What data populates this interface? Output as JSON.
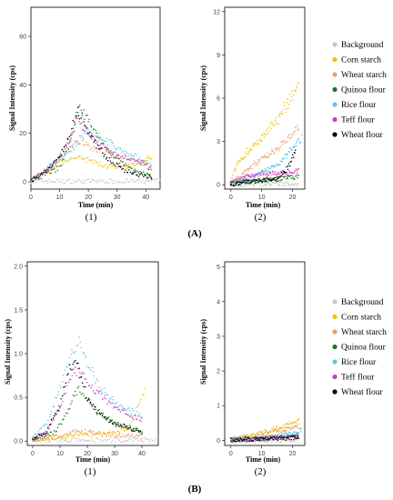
{
  "colors": {
    "Background": "#c8c8c8",
    "Corn starch": "#f2c200",
    "Wheat starch": "#e8a070",
    "Quinoa flour": "#1e7a1e",
    "Rice flour": "#5cc8e8",
    "Teff flour": "#d040c0",
    "Wheat flour": "#000000"
  },
  "legend": [
    "Background",
    "Corn starch",
    "Wheat starch",
    "Quinoa flour",
    "Rice flour",
    "Teff flour",
    "Wheat flour"
  ],
  "section_labels": [
    "(A)",
    "(B)"
  ],
  "chart_data": [
    {
      "id": "A1",
      "type": "scatter",
      "panel_label": "(1)",
      "xlabel": "Time (min)",
      "ylabel": "Signal Intensity (cps)",
      "xlim": [
        0,
        45
      ],
      "ylim": [
        -3,
        72
      ],
      "xticks": [
        "0",
        "10",
        "20",
        "30",
        "40"
      ],
      "xtick_values": [
        0,
        10,
        20,
        30,
        40
      ],
      "yticks": [
        "0",
        "20",
        "40",
        "60"
      ],
      "ytick_values": [
        0,
        20,
        40,
        60
      ],
      "series": [
        {
          "name": "Background",
          "x": [
            0,
            45
          ],
          "y": [
            0.3,
            0.3
          ]
        },
        {
          "name": "Corn starch",
          "x": [
            0,
            5,
            10,
            15,
            20,
            25,
            30,
            35,
            40,
            42
          ],
          "y": [
            0.5,
            4,
            8,
            10,
            9,
            7,
            5.5,
            6.5,
            9,
            10
          ]
        },
        {
          "name": "Wheat starch",
          "x": [
            0,
            5,
            10,
            15,
            18,
            22,
            28,
            35,
            40,
            42
          ],
          "y": [
            0.5,
            4,
            9,
            16,
            17,
            14,
            11,
            9,
            7,
            6
          ]
        },
        {
          "name": "Quinoa flour",
          "x": [
            0,
            5,
            10,
            13,
            17,
            20,
            25,
            30,
            35,
            40,
            42
          ],
          "y": [
            0.5,
            3,
            6,
            14,
            32,
            25,
            16,
            9,
            5,
            3,
            2
          ]
        },
        {
          "name": "Rice flour",
          "x": [
            0,
            5,
            10,
            15,
            18,
            20,
            25,
            30,
            35,
            40,
            42
          ],
          "y": [
            0.5,
            5,
            10,
            14,
            19,
            21,
            18,
            14,
            11,
            8,
            7
          ]
        },
        {
          "name": "Teff flour",
          "x": [
            0,
            5,
            10,
            14,
            16,
            18,
            22,
            28,
            35,
            40,
            42
          ],
          "y": [
            0.5,
            4,
            10,
            18,
            27,
            22,
            17,
            12,
            9,
            7,
            5
          ]
        },
        {
          "name": "Wheat flour",
          "x": [
            0,
            5,
            10,
            13,
            16,
            18,
            22,
            26,
            32,
            38,
            42
          ],
          "y": [
            0.5,
            4,
            10,
            18,
            29,
            26,
            17,
            10,
            5,
            3,
            2
          ]
        }
      ]
    },
    {
      "id": "A2",
      "type": "scatter",
      "panel_label": "(2)",
      "xlabel": "Time (min)",
      "ylabel": "Signal Intensity (cps)",
      "xlim": [
        -2,
        24
      ],
      "ylim": [
        -0.3,
        12.3
      ],
      "xticks": [
        "0",
        "10",
        "20"
      ],
      "xtick_values": [
        0,
        10,
        20
      ],
      "yticks": [
        "0",
        "3",
        "6",
        "9",
        "12"
      ],
      "ytick_values": [
        0,
        3,
        6,
        9,
        12
      ],
      "series": [
        {
          "name": "Background",
          "x": [
            0,
            22
          ],
          "y": [
            0.05,
            0.05
          ]
        },
        {
          "name": "Corn starch",
          "x": [
            0,
            2,
            5,
            10,
            15,
            20,
            22
          ],
          "y": [
            0.2,
            1.5,
            2.2,
            3.2,
            4.5,
            6.2,
            7
          ]
        },
        {
          "name": "Wheat starch",
          "x": [
            0,
            5,
            10,
            15,
            20,
            22
          ],
          "y": [
            0.1,
            1.0,
            1.8,
            2.5,
            3.5,
            4
          ]
        },
        {
          "name": "Quinoa flour",
          "x": [
            0,
            5,
            10,
            15,
            20,
            22
          ],
          "y": [
            0.05,
            0.2,
            0.3,
            0.4,
            0.5,
            0.6
          ]
        },
        {
          "name": "Rice flour",
          "x": [
            0,
            5,
            10,
            15,
            20,
            23
          ],
          "y": [
            0.1,
            0.4,
            0.8,
            1.4,
            2.5,
            3.3
          ]
        },
        {
          "name": "Teff flour",
          "x": [
            0,
            5,
            10,
            15,
            20,
            22
          ],
          "y": [
            0.1,
            0.6,
            0.8,
            0.8,
            0.9,
            1.0
          ]
        },
        {
          "name": "Wheat flour",
          "x": [
            0,
            5,
            10,
            15,
            18,
            21
          ],
          "y": [
            0.05,
            0.2,
            0.3,
            0.5,
            1.0,
            2.3
          ]
        }
      ]
    },
    {
      "id": "B1",
      "type": "scatter",
      "panel_label": "(1)",
      "xlabel": "Time (min)",
      "ylabel": "Signal Intensity (cps)",
      "xlim": [
        -2,
        46
      ],
      "ylim": [
        -0.05,
        2.05
      ],
      "xticks": [
        "0",
        "10",
        "20",
        "30",
        "40"
      ],
      "xtick_values": [
        0,
        10,
        20,
        30,
        40
      ],
      "yticks": [
        "0.0",
        "0.5",
        "1.0",
        "1.5",
        "2.0"
      ],
      "ytick_values": [
        0,
        0.5,
        1.0,
        1.5,
        2.0
      ],
      "series": [
        {
          "name": "Background",
          "x": [
            0,
            45
          ],
          "y": [
            0.01,
            0.01
          ]
        },
        {
          "name": "Corn starch",
          "x": [
            0,
            10,
            20,
            30,
            35,
            38,
            41
          ],
          "y": [
            0.02,
            0.05,
            0.08,
            0.1,
            0.15,
            0.35,
            0.6
          ]
        },
        {
          "name": "Wheat starch",
          "x": [
            0,
            10,
            15,
            20,
            30,
            40
          ],
          "y": [
            0.02,
            0.05,
            0.12,
            0.1,
            0.07,
            0.05
          ]
        },
        {
          "name": "Quinoa flour",
          "x": [
            0,
            8,
            12,
            15,
            17,
            20,
            25,
            30,
            35,
            40
          ],
          "y": [
            0.02,
            0.1,
            0.3,
            0.5,
            0.6,
            0.45,
            0.3,
            0.2,
            0.15,
            0.1
          ]
        },
        {
          "name": "Rice flour",
          "x": [
            0,
            5,
            10,
            14,
            17,
            20,
            25,
            30,
            35,
            40
          ],
          "y": [
            0.03,
            0.2,
            0.6,
            1.0,
            1.15,
            0.9,
            0.6,
            0.45,
            0.35,
            0.3
          ]
        },
        {
          "name": "Teff flour",
          "x": [
            0,
            5,
            10,
            15,
            18,
            22,
            28,
            35,
            40
          ],
          "y": [
            0.02,
            0.1,
            0.4,
            0.8,
            0.75,
            0.6,
            0.45,
            0.3,
            0.25
          ]
        },
        {
          "name": "Wheat flour",
          "x": [
            0,
            5,
            10,
            13,
            16,
            20,
            25,
            30,
            35,
            40
          ],
          "y": [
            0.02,
            0.1,
            0.4,
            0.8,
            0.9,
            0.5,
            0.3,
            0.2,
            0.15,
            0.1
          ]
        }
      ]
    },
    {
      "id": "B2",
      "type": "scatter",
      "panel_label": "(2)",
      "xlabel": "Time (min)",
      "ylabel": "Signal Intensity (cps)",
      "xlim": [
        -2,
        24
      ],
      "ylim": [
        -0.15,
        5.15
      ],
      "xticks": [
        "0",
        "10",
        "20"
      ],
      "xtick_values": [
        0,
        10,
        20
      ],
      "yticks": [
        "0",
        "1",
        "2",
        "3",
        "4",
        "5"
      ],
      "ytick_values": [
        0,
        1,
        2,
        3,
        4,
        5
      ],
      "series": [
        {
          "name": "Background",
          "x": [
            0,
            22
          ],
          "y": [
            0.0,
            0.0
          ]
        },
        {
          "name": "Corn starch",
          "x": [
            0,
            5,
            10,
            15,
            20,
            22
          ],
          "y": [
            0.02,
            0.1,
            0.2,
            0.35,
            0.5,
            0.6
          ]
        },
        {
          "name": "Wheat starch",
          "x": [
            0,
            5,
            10,
            15,
            20,
            22
          ],
          "y": [
            0.02,
            0.08,
            0.15,
            0.25,
            0.35,
            0.4
          ]
        },
        {
          "name": "Quinoa flour",
          "x": [
            0,
            10,
            20,
            22
          ],
          "y": [
            0.01,
            0.05,
            0.1,
            0.12
          ]
        },
        {
          "name": "Rice flour",
          "x": [
            0,
            10,
            15,
            20,
            23
          ],
          "y": [
            0.01,
            0.05,
            0.1,
            0.2,
            0.3
          ]
        },
        {
          "name": "Teff flour",
          "x": [
            0,
            10,
            20,
            22
          ],
          "y": [
            0.01,
            0.05,
            0.1,
            0.12
          ]
        },
        {
          "name": "Wheat flour",
          "x": [
            0,
            10,
            20,
            22
          ],
          "y": [
            0.01,
            0.04,
            0.08,
            0.1
          ]
        }
      ]
    }
  ]
}
